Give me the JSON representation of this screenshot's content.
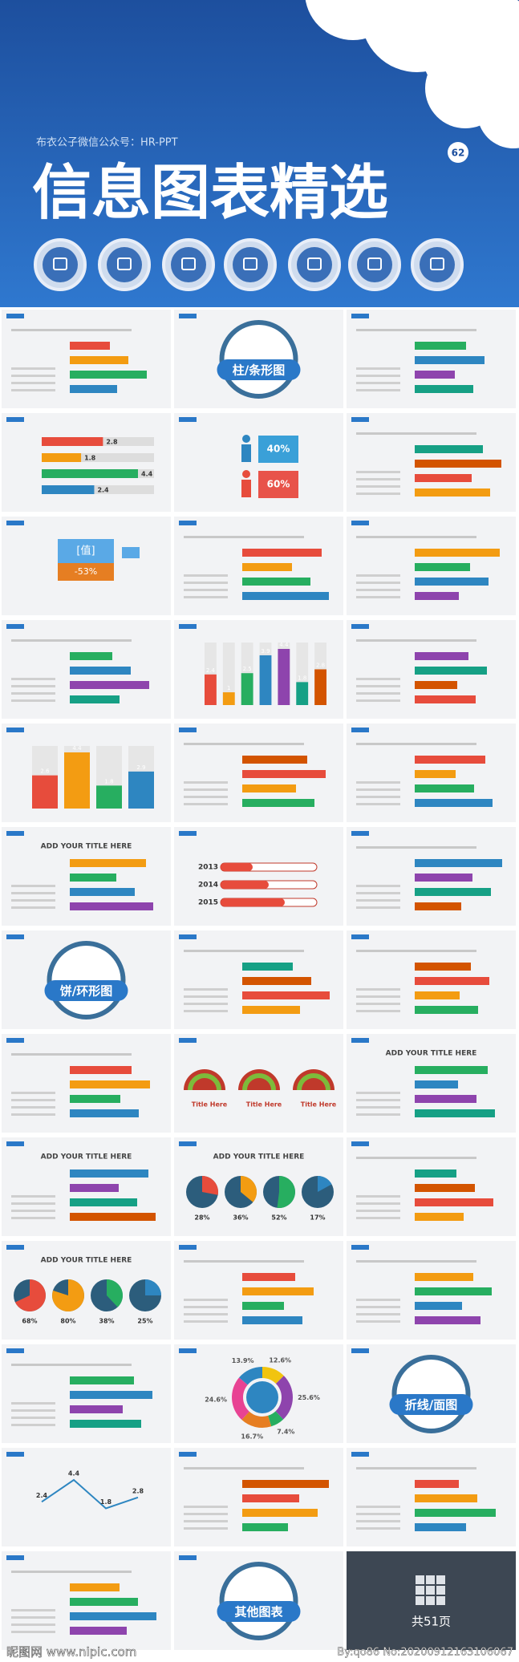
{
  "header": {
    "credit": "布衣公子微信公众号：HR-PPT",
    "title": "信息图表精选",
    "badge": "62"
  },
  "slides": [
    {
      "kind": "plain"
    },
    {
      "kind": "section",
      "label": "柱/条形图"
    },
    {
      "kind": "plain"
    },
    {
      "kind": "hbars",
      "values": [
        2.8,
        1.8,
        4.4,
        2.4
      ]
    },
    {
      "kind": "people",
      "values": [
        40,
        60
      ],
      "value_labels": [
        "40%",
        "60%"
      ]
    },
    {
      "kind": "plain"
    },
    {
      "kind": "value",
      "label": "[值]",
      "values": [
        -53
      ],
      "value_labels": [
        "-53%"
      ]
    },
    {
      "kind": "plain"
    },
    {
      "kind": "plain"
    },
    {
      "kind": "plain"
    },
    {
      "kind": "vbars",
      "values": [
        2.4,
        1,
        2.5,
        3.9,
        4.4,
        1.8,
        2.8
      ]
    },
    {
      "kind": "plain"
    },
    {
      "kind": "vbars",
      "values": [
        2.6,
        4.4,
        1.8,
        2.9
      ]
    },
    {
      "kind": "plain"
    },
    {
      "kind": "plain"
    },
    {
      "kind": "plain",
      "title": "ADD YOUR TITLE HERE"
    },
    {
      "kind": "years",
      "categories": [
        "2013",
        "2014",
        "2015"
      ]
    },
    {
      "kind": "plain"
    },
    {
      "kind": "section",
      "label": "饼/环形图"
    },
    {
      "kind": "plain"
    },
    {
      "kind": "plain"
    },
    {
      "kind": "plain"
    },
    {
      "kind": "gauges",
      "labels": [
        "Title Here",
        "Title Here",
        "Title Here"
      ]
    },
    {
      "kind": "plain",
      "title": "ADD YOUR TITLE HERE"
    },
    {
      "kind": "plain",
      "title": "ADD YOUR TITLE HERE"
    },
    {
      "kind": "pies",
      "title": "ADD YOUR TITLE HERE",
      "values": [
        28,
        36,
        52,
        17
      ],
      "value_labels": [
        "28%",
        "36%",
        "52%",
        "17%"
      ]
    },
    {
      "kind": "plain"
    },
    {
      "kind": "pies",
      "title": "ADD YOUR TITLE HERE",
      "values": [
        68,
        80,
        38,
        25
      ],
      "value_labels": [
        "68%",
        "80%",
        "38%",
        "25%"
      ]
    },
    {
      "kind": "plain"
    },
    {
      "kind": "plain"
    },
    {
      "kind": "plain"
    },
    {
      "kind": "donut",
      "values": [
        12.6,
        25.6,
        7.4,
        16.7,
        24.6,
        13.9
      ],
      "value_labels": [
        "12.6%",
        "25.6%",
        "7.4%",
        "16.7%",
        "24.6%",
        "13.9%"
      ]
    },
    {
      "kind": "section",
      "label": "折线/面图"
    },
    {
      "kind": "line",
      "values": [
        2.4,
        4.4,
        1.8,
        2.8
      ]
    },
    {
      "kind": "plain"
    },
    {
      "kind": "plain"
    },
    {
      "kind": "plain"
    },
    {
      "kind": "section",
      "label": "其他图表"
    },
    {
      "kind": "count",
      "label": "共51页"
    }
  ],
  "footer": {
    "watermark": "昵图网 www.nipic.com",
    "id": "By:qo86 No:20200912163106067"
  }
}
